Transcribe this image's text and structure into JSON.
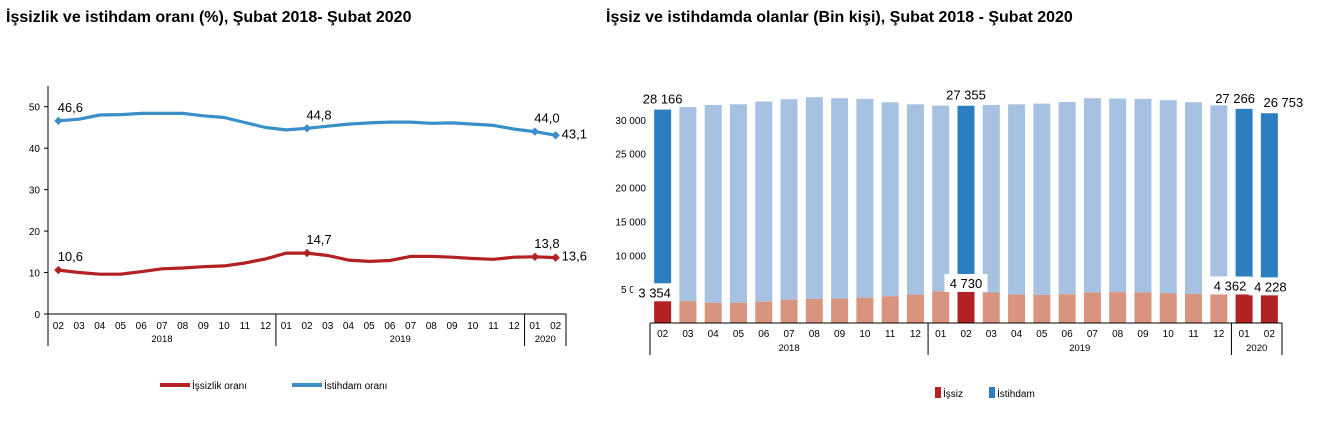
{
  "chart_data": [
    {
      "type": "line",
      "title": "İşsizlik ve istihdam oranı (%), Şubat 2018- Şubat 2020",
      "x": [
        "02",
        "03",
        "04",
        "05",
        "06",
        "07",
        "08",
        "09",
        "10",
        "11",
        "12",
        "01",
        "02",
        "03",
        "04",
        "05",
        "06",
        "07",
        "08",
        "09",
        "10",
        "11",
        "12",
        "01",
        "02"
      ],
      "year_groups": [
        {
          "label": "2018",
          "count": 11
        },
        {
          "label": "2019",
          "count": 12
        },
        {
          "label": "2020",
          "count": 2
        }
      ],
      "yticks": [
        "0",
        "10",
        "20",
        "30",
        "40",
        "50"
      ],
      "ylim": [
        0,
        55
      ],
      "series": [
        {
          "name": "İşsizlik oranı",
          "color": "#b22222",
          "values": [
            10.6,
            10.0,
            9.6,
            9.6,
            10.2,
            10.9,
            11.1,
            11.4,
            11.6,
            12.3,
            13.3,
            14.7,
            14.7,
            14.1,
            13.0,
            12.7,
            12.9,
            13.9,
            13.9,
            13.7,
            13.4,
            13.2,
            13.7,
            13.8,
            13.6
          ],
          "labels": [
            {
              "index": 0,
              "text": "10,6"
            },
            {
              "index": 12,
              "text": "14,7"
            },
            {
              "index": 23,
              "text": "13,8"
            },
            {
              "index": 24,
              "text": "13,6"
            }
          ]
        },
        {
          "name": "İstihdam oranı",
          "color": "#3a8fc9",
          "values": [
            46.6,
            47.0,
            48.0,
            48.1,
            48.4,
            48.4,
            48.4,
            47.8,
            47.4,
            46.2,
            45.0,
            44.4,
            44.8,
            45.3,
            45.8,
            46.1,
            46.3,
            46.3,
            46.0,
            46.1,
            45.8,
            45.5,
            44.6,
            44.0,
            43.1
          ],
          "labels": [
            {
              "index": 0,
              "text": "46,6"
            },
            {
              "index": 12,
              "text": "44,8"
            },
            {
              "index": 23,
              "text": "44,0"
            },
            {
              "index": 24,
              "text": "43,1"
            }
          ]
        }
      ],
      "legend": "bottom"
    },
    {
      "type": "bar",
      "stacked": true,
      "title": "İşsiz ve istihdamda olanlar (Bin kişi), Şubat 2018 - Şubat 2020",
      "categories": [
        "02",
        "03",
        "04",
        "05",
        "06",
        "07",
        "08",
        "09",
        "10",
        "11",
        "12",
        "01",
        "02",
        "03",
        "04",
        "05",
        "06",
        "07",
        "08",
        "09",
        "10",
        "11",
        "12",
        "01",
        "02"
      ],
      "year_groups": [
        {
          "label": "2018",
          "count": 11
        },
        {
          "label": "2019",
          "count": 12
        },
        {
          "label": "2020",
          "count": 2
        }
      ],
      "yticks": [
        "5 000",
        "10 000",
        "15 000",
        "20 000",
        "25 000",
        "30 000"
      ],
      "ylim": [
        0,
        35000
      ],
      "highlight_indices": [
        0,
        12,
        23,
        24
      ],
      "series": [
        {
          "name": "İşsiz",
          "color": "#b22222",
          "light_color": "#d99480",
          "values": [
            3354,
            3200,
            3000,
            3000,
            3150,
            3450,
            3550,
            3600,
            3750,
            3950,
            4200,
            4700,
            4730,
            4500,
            4200,
            4150,
            4250,
            4500,
            4550,
            4500,
            4400,
            4300,
            4350,
            4362,
            4228
          ],
          "labels": [
            {
              "index": 0,
              "text": "3 354"
            },
            {
              "index": 12,
              "text": "4 730"
            },
            {
              "index": 23,
              "text": "4 362"
            },
            {
              "index": 24,
              "text": "4 228"
            }
          ]
        },
        {
          "name": "İstihdam",
          "color": "#2b7fc1",
          "light_color": "#a7c1e3",
          "values": [
            28166,
            28700,
            29200,
            29300,
            29550,
            29600,
            29800,
            29600,
            29350,
            28650,
            28100,
            27400,
            27355,
            27700,
            28100,
            28250,
            28400,
            28700,
            28600,
            28600,
            28500,
            28300,
            27800,
            27266,
            26753
          ],
          "labels": [
            {
              "index": 0,
              "text": "28 166"
            },
            {
              "index": 12,
              "text": "27 355"
            },
            {
              "index": 23,
              "text": "27 266"
            },
            {
              "index": 24,
              "text": "26 753"
            }
          ]
        }
      ],
      "legend": "bottom"
    }
  ]
}
